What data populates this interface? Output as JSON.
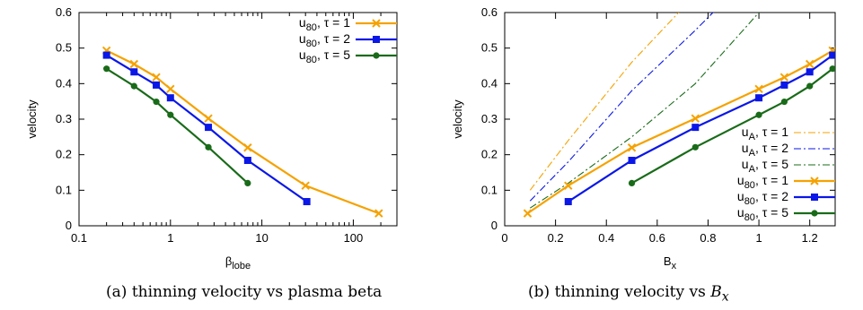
{
  "colors": {
    "tau1": "#f5a200",
    "tau2": "#0a17e6",
    "tau5": "#196b19"
  },
  "captions": {
    "a": {
      "label": "(a)",
      "text": "thinning velocity vs plasma beta"
    },
    "b": {
      "label": "(b)",
      "text": "thinning velocity vs",
      "math_main": "B",
      "math_sub": "x"
    }
  },
  "chart_data": [
    {
      "id": "a",
      "type": "line",
      "xscale": "log",
      "xlim": [
        0.1,
        300
      ],
      "ylim": [
        0,
        0.6
      ],
      "xlabel_main": "β",
      "xlabel_sub": "lobe",
      "ylabel": "velocity",
      "xticks": [
        0.1,
        1,
        10,
        100
      ],
      "xtick_labels": [
        "0.1",
        "1",
        "10",
        "100"
      ],
      "yticks": [
        0,
        0.1,
        0.2,
        0.3,
        0.4,
        0.5,
        0.6
      ],
      "ytick_labels": [
        "0",
        "0.1",
        "0.2",
        "0.3",
        "0.4",
        "0.5",
        "0.6"
      ],
      "legend_position": "top-right",
      "series": [
        {
          "name_main": "u",
          "name_sub": "80",
          "name_rest": ", τ = 1",
          "color": "#f5a200",
          "marker": "x",
          "dash": "solid",
          "x": [
            0.2,
            0.4,
            0.7,
            1.0,
            2.6,
            7.0,
            30.0,
            190.0
          ],
          "y": [
            0.493,
            0.455,
            0.418,
            0.385,
            0.302,
            0.22,
            0.113,
            0.035
          ]
        },
        {
          "name_main": "u",
          "name_sub": "80",
          "name_rest": ", τ = 2",
          "color": "#0a17e6",
          "marker": "square",
          "dash": "solid",
          "x": [
            0.2,
            0.4,
            0.7,
            1.0,
            2.6,
            7.0,
            31.0
          ],
          "y": [
            0.48,
            0.433,
            0.396,
            0.36,
            0.277,
            0.184,
            0.068
          ]
        },
        {
          "name_main": "u",
          "name_sub": "80",
          "name_rest": ", τ = 5",
          "color": "#196b19",
          "marker": "circle",
          "dash": "solid",
          "x": [
            0.2,
            0.4,
            0.7,
            1.0,
            2.6,
            7.0
          ],
          "y": [
            0.442,
            0.393,
            0.349,
            0.312,
            0.221,
            0.12
          ]
        }
      ]
    },
    {
      "id": "b",
      "type": "line",
      "xscale": "linear",
      "xlim": [
        0,
        1.3
      ],
      "ylim": [
        0,
        0.6
      ],
      "xlabel_main": "B",
      "xlabel_sub": "x",
      "ylabel": "velocity",
      "xticks": [
        0,
        0.2,
        0.4,
        0.6,
        0.8,
        1.0,
        1.2
      ],
      "xtick_labels": [
        "0",
        "0.2",
        "0.4",
        "0.6",
        "0.8",
        "1",
        "1.2"
      ],
      "yticks": [
        0,
        0.1,
        0.2,
        0.3,
        0.4,
        0.5,
        0.6
      ],
      "ytick_labels": [
        "0",
        "0.1",
        "0.2",
        "0.3",
        "0.4",
        "0.5",
        "0.6"
      ],
      "legend_position": "bottom-right",
      "series": [
        {
          "name_main": "u",
          "name_sub": "A",
          "name_rest": ", τ = 1",
          "color": "#f5a200",
          "marker": "none",
          "dash": "dashdot",
          "x": [
            0.1,
            0.25,
            0.5,
            0.75,
            0.85
          ],
          "y": [
            0.1,
            0.24,
            0.46,
            0.65,
            0.74
          ]
        },
        {
          "name_main": "u",
          "name_sub": "A",
          "name_rest": ", τ = 2",
          "color": "#0a17e6",
          "marker": "none",
          "dash": "dashdot",
          "x": [
            0.1,
            0.25,
            0.5,
            0.75,
            1.0
          ],
          "y": [
            0.07,
            0.18,
            0.38,
            0.55,
            0.73
          ]
        },
        {
          "name_main": "u",
          "name_sub": "A",
          "name_rest": ", τ = 5",
          "color": "#196b19",
          "marker": "none",
          "dash": "dashdot",
          "x": [
            0.1,
            0.25,
            0.5,
            0.75,
            1.0
          ],
          "y": [
            0.05,
            0.12,
            0.25,
            0.4,
            0.6
          ]
        },
        {
          "name_main": "u",
          "name_sub": "80",
          "name_rest": ", τ = 1",
          "color": "#f5a200",
          "marker": "x",
          "dash": "solid",
          "x": [
            0.09,
            0.25,
            0.5,
            0.75,
            1.0,
            1.1,
            1.2,
            1.29
          ],
          "y": [
            0.035,
            0.113,
            0.22,
            0.302,
            0.385,
            0.418,
            0.455,
            0.493
          ]
        },
        {
          "name_main": "u",
          "name_sub": "80",
          "name_rest": ", τ = 2",
          "color": "#0a17e6",
          "marker": "square",
          "dash": "solid",
          "x": [
            0.25,
            0.5,
            0.75,
            1.0,
            1.1,
            1.2,
            1.29
          ],
          "y": [
            0.068,
            0.184,
            0.277,
            0.36,
            0.396,
            0.433,
            0.48
          ]
        },
        {
          "name_main": "u",
          "name_sub": "80",
          "name_rest": ", τ = 5",
          "color": "#196b19",
          "marker": "circle",
          "dash": "solid",
          "x": [
            0.5,
            0.75,
            1.0,
            1.1,
            1.2,
            1.29
          ],
          "y": [
            0.12,
            0.221,
            0.312,
            0.349,
            0.393,
            0.442
          ]
        }
      ]
    }
  ]
}
